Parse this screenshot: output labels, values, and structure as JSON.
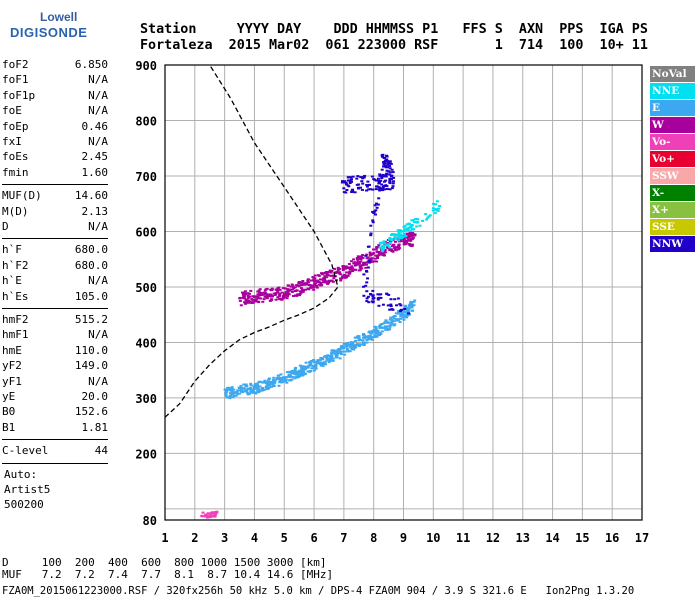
{
  "logo": {
    "line1": "Lowell",
    "line2": "DIGISONDE"
  },
  "header": {
    "line1": "Station     YYYY DAY    DDD HHMMSS P1   FFS S  AXN  PPS  IGA PS",
    "line2": "Fortaleza  2015 Mar02  061 223000 RSF       1  714  100  10+ 11"
  },
  "params": {
    "group1": [
      {
        "label": "foF2",
        "value": "6.850"
      },
      {
        "label": "foF1",
        "value": "N/A"
      },
      {
        "label": "foF1p",
        "value": "N/A"
      },
      {
        "label": "foE",
        "value": "N/A"
      },
      {
        "label": "foEp",
        "value": "0.46"
      },
      {
        "label": "fxI",
        "value": "N/A"
      },
      {
        "label": "foEs",
        "value": "2.45"
      },
      {
        "label": "fmin",
        "value": "1.60"
      }
    ],
    "group2": [
      {
        "label": "MUF(D)",
        "value": "14.60"
      },
      {
        "label": "M(D)",
        "value": "2.13"
      },
      {
        "label": "D",
        "value": "N/A"
      }
    ],
    "group3": [
      {
        "label": "h`F",
        "value": "680.0"
      },
      {
        "label": "h`F2",
        "value": "680.0"
      },
      {
        "label": "h`E",
        "value": "N/A"
      },
      {
        "label": "h`Es",
        "value": "105.0"
      }
    ],
    "group4": [
      {
        "label": "hmF2",
        "value": "515.2"
      },
      {
        "label": "hmF1",
        "value": "N/A"
      },
      {
        "label": "hmE",
        "value": "110.0"
      },
      {
        "label": "yF2",
        "value": "149.0"
      },
      {
        "label": "yF1",
        "value": "N/A"
      },
      {
        "label": "yE",
        "value": "20.0"
      },
      {
        "label": "B0",
        "value": "152.6"
      },
      {
        "label": "B1",
        "value": "1.81"
      }
    ],
    "clevel": {
      "label": "C-level",
      "value": "44"
    },
    "auto": [
      "Auto:",
      "Artist5",
      "500200"
    ]
  },
  "legend": [
    {
      "label": "NoVal",
      "color": "#808080"
    },
    {
      "label": "NNE",
      "color": "#00e0f0"
    },
    {
      "label": "E",
      "color": "#3ca8f0"
    },
    {
      "label": "W",
      "color": "#a8009c"
    },
    {
      "label": "Vo-",
      "color": "#f040b8"
    },
    {
      "label": "Vo+",
      "color": "#e80030"
    },
    {
      "label": "SSW",
      "color": "#f8a8a8"
    },
    {
      "label": "X-",
      "color": "#008000"
    },
    {
      "label": "X+",
      "color": "#88c040"
    },
    {
      "label": "SSE",
      "color": "#c8c800"
    },
    {
      "label": "NNW",
      "color": "#2000c8"
    }
  ],
  "footer": {
    "row1": "D     100  200  400  600  800 1000 1500 3000 [km]",
    "row2": "MUF   7.2  7.2  7.4  7.7  8.1  8.7 10.4 14.6 [MHz]",
    "row3": "FZA0M_2015061223000.RSF / 320fx256h 50 kHz 5.0 km / DPS-4 FZA0M 904 / 3.9 S 321.6 E   Ion2Png 1.3.20"
  },
  "chart_data": {
    "type": "scatter",
    "xlim": [
      1,
      17
    ],
    "ylim": [
      80,
      900
    ],
    "xticks": [
      1,
      2,
      3,
      4,
      5,
      6,
      7,
      8,
      9,
      10,
      11,
      12,
      13,
      14,
      15,
      16,
      17
    ],
    "yticks": [
      80,
      100,
      200,
      300,
      400,
      500,
      600,
      700,
      800,
      900
    ],
    "ytick_labels": [
      "80",
      "",
      "200",
      "300",
      "400",
      "500",
      "600",
      "700",
      "800",
      "900"
    ],
    "grid": true,
    "clusters": [
      {
        "name": "W",
        "color": "#a8009c",
        "points": [
          [
            3.5,
            480
          ],
          [
            4.0,
            485
          ],
          [
            4.5,
            488
          ],
          [
            5.0,
            492
          ],
          [
            5.5,
            500
          ],
          [
            6.0,
            512
          ],
          [
            6.5,
            520
          ],
          [
            7.0,
            530
          ],
          [
            7.5,
            545
          ],
          [
            8.0,
            560
          ],
          [
            8.5,
            575
          ],
          [
            9.0,
            585
          ],
          [
            9.3,
            590
          ]
        ],
        "spread": [
          0.3,
          12
        ]
      },
      {
        "name": "E",
        "color": "#3ca8f0",
        "points": [
          [
            3.0,
            310
          ],
          [
            3.5,
            315
          ],
          [
            4.0,
            320
          ],
          [
            4.5,
            328
          ],
          [
            5.0,
            338
          ],
          [
            5.5,
            350
          ],
          [
            6.0,
            362
          ],
          [
            6.5,
            375
          ],
          [
            7.0,
            390
          ],
          [
            7.5,
            405
          ],
          [
            8.0,
            420
          ],
          [
            8.5,
            435
          ],
          [
            9.0,
            455
          ],
          [
            9.3,
            470
          ]
        ],
        "spread": [
          0.3,
          10
        ]
      },
      {
        "name": "NNE",
        "color": "#00e0f0",
        "points": [
          [
            8.2,
            570
          ],
          [
            8.7,
            590
          ],
          [
            9.2,
            610
          ],
          [
            10.2,
            650
          ]
        ],
        "spread": [
          0.3,
          10
        ]
      },
      {
        "name": "NNW",
        "color": "#2000c8",
        "points": [
          [
            6.9,
            685
          ],
          [
            7.7,
            690
          ],
          [
            8.6,
            690
          ],
          [
            8.3,
            740
          ],
          [
            7.6,
            490
          ],
          [
            9.1,
            465
          ]
        ],
        "spread": [
          0.25,
          15
        ]
      },
      {
        "name": "Vo-",
        "color": "#f040b8",
        "points": [
          [
            2.2,
            90
          ],
          [
            2.7,
            92
          ]
        ],
        "spread": [
          0.2,
          5
        ]
      }
    ],
    "muf_curve": [
      [
        1.0,
        265
      ],
      [
        1.5,
        290
      ],
      [
        2.0,
        330
      ],
      [
        2.5,
        360
      ],
      [
        3.0,
        385
      ],
      [
        3.5,
        405
      ],
      [
        4.0,
        418
      ],
      [
        4.5,
        428
      ],
      [
        5.0,
        440
      ],
      [
        5.5,
        450
      ],
      [
        6.0,
        462
      ],
      [
        6.5,
        480
      ],
      [
        6.8,
        500
      ],
      [
        6.6,
        540
      ],
      [
        6.0,
        600
      ],
      [
        5.0,
        680
      ],
      [
        4.0,
        760
      ],
      [
        3.2,
        840
      ],
      [
        2.5,
        900
      ]
    ]
  }
}
